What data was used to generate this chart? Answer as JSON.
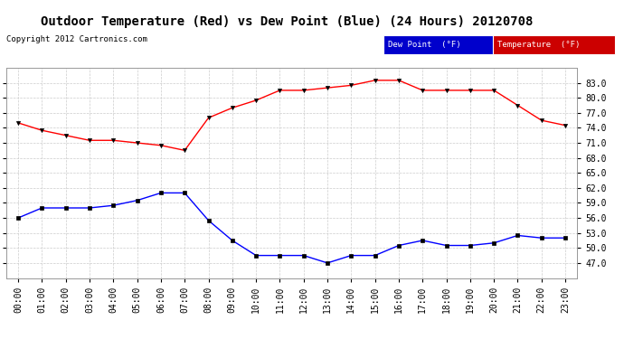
{
  "title": "Outdoor Temperature (Red) vs Dew Point (Blue) (24 Hours) 20120708",
  "copyright": "Copyright 2012 Cartronics.com",
  "background_color": "#ffffff",
  "plot_bg_color": "#ffffff",
  "grid_color": "#cccccc",
  "hours": [
    0,
    1,
    2,
    3,
    4,
    5,
    6,
    7,
    8,
    9,
    10,
    11,
    12,
    13,
    14,
    15,
    16,
    17,
    18,
    19,
    20,
    21,
    22,
    23
  ],
  "temperature": [
    75.0,
    73.5,
    72.5,
    71.5,
    71.5,
    71.0,
    70.5,
    69.5,
    76.0,
    78.0,
    79.5,
    81.5,
    81.5,
    82.0,
    82.5,
    83.5,
    83.5,
    81.5,
    81.5,
    81.5,
    81.5,
    78.5,
    75.5,
    74.5
  ],
  "dew_point": [
    56.0,
    58.0,
    58.0,
    58.0,
    58.5,
    59.5,
    61.0,
    61.0,
    55.5,
    51.5,
    48.5,
    48.5,
    48.5,
    47.0,
    48.5,
    48.5,
    50.5,
    51.5,
    50.5,
    50.5,
    51.0,
    52.5,
    52.0,
    52.0
  ],
  "temp_color": "#ff0000",
  "dew_color": "#0000ff",
  "ylim": [
    44,
    86
  ],
  "yticks": [
    47.0,
    50.0,
    53.0,
    56.0,
    59.0,
    62.0,
    65.0,
    68.0,
    71.0,
    74.0,
    77.0,
    80.0,
    83.0
  ],
  "legend_dew_color": "#0000cc",
  "legend_temp_color": "#cc0000",
  "title_fontsize": 10,
  "copyright_fontsize": 6.5,
  "tick_fontsize": 7,
  "marker_size": 3,
  "linewidth": 1.0
}
